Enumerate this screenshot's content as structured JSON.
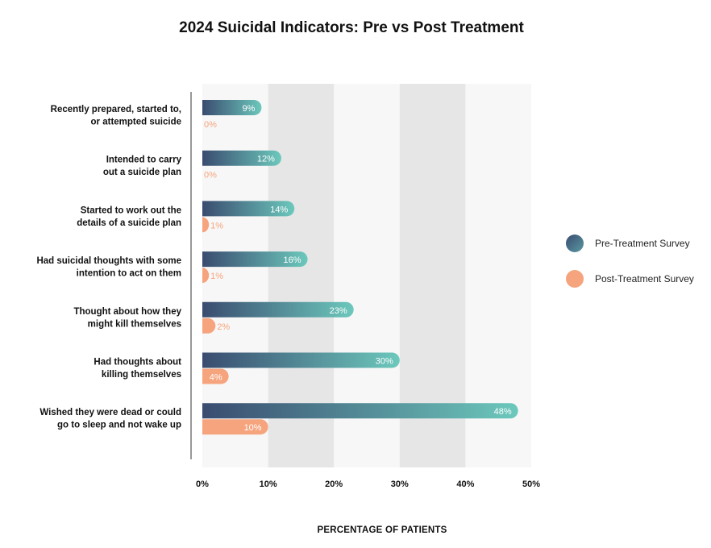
{
  "chart_data": {
    "type": "bar",
    "orientation": "horizontal",
    "title": "2024 Suicidal Indicators: Pre vs Post Treatment",
    "xlabel": "PERCENTAGE OF PATIENTS",
    "ylabel": "",
    "xlim": [
      0,
      50
    ],
    "x_ticks": [
      "0%",
      "10%",
      "20%",
      "30%",
      "40%",
      "50%"
    ],
    "categories": [
      [
        "Recently prepared, started to,",
        "or attempted suicide"
      ],
      [
        "Intended to carry",
        "out a suicide plan"
      ],
      [
        "Started to work out the",
        "details of a suicide plan"
      ],
      [
        "Had suicidal thoughts with some",
        "intention to act on them"
      ],
      [
        "Thought about how they",
        "might kill themselves"
      ],
      [
        "Had thoughts about",
        "killing themselves"
      ],
      [
        "Wished they were dead or could",
        "go to sleep and not wake up"
      ]
    ],
    "series": [
      {
        "name": "Pre-Treatment Survey",
        "values": [
          9,
          12,
          14,
          16,
          23,
          30,
          48
        ],
        "labels": [
          "9%",
          "12%",
          "14%",
          "16%",
          "23%",
          "30%",
          "48%"
        ],
        "color_start": "#3a4c70",
        "color_end": "#6cc8bc"
      },
      {
        "name": "Post-Treatment Survey",
        "values": [
          0,
          0,
          1,
          1,
          2,
          4,
          10
        ],
        "labels": [
          "0%",
          "0%",
          "1%",
          "1%",
          "2%",
          "4%",
          "10%"
        ],
        "color": "#f6a47e"
      }
    ],
    "grid": "alternating-bands",
    "legend_position": "right"
  }
}
